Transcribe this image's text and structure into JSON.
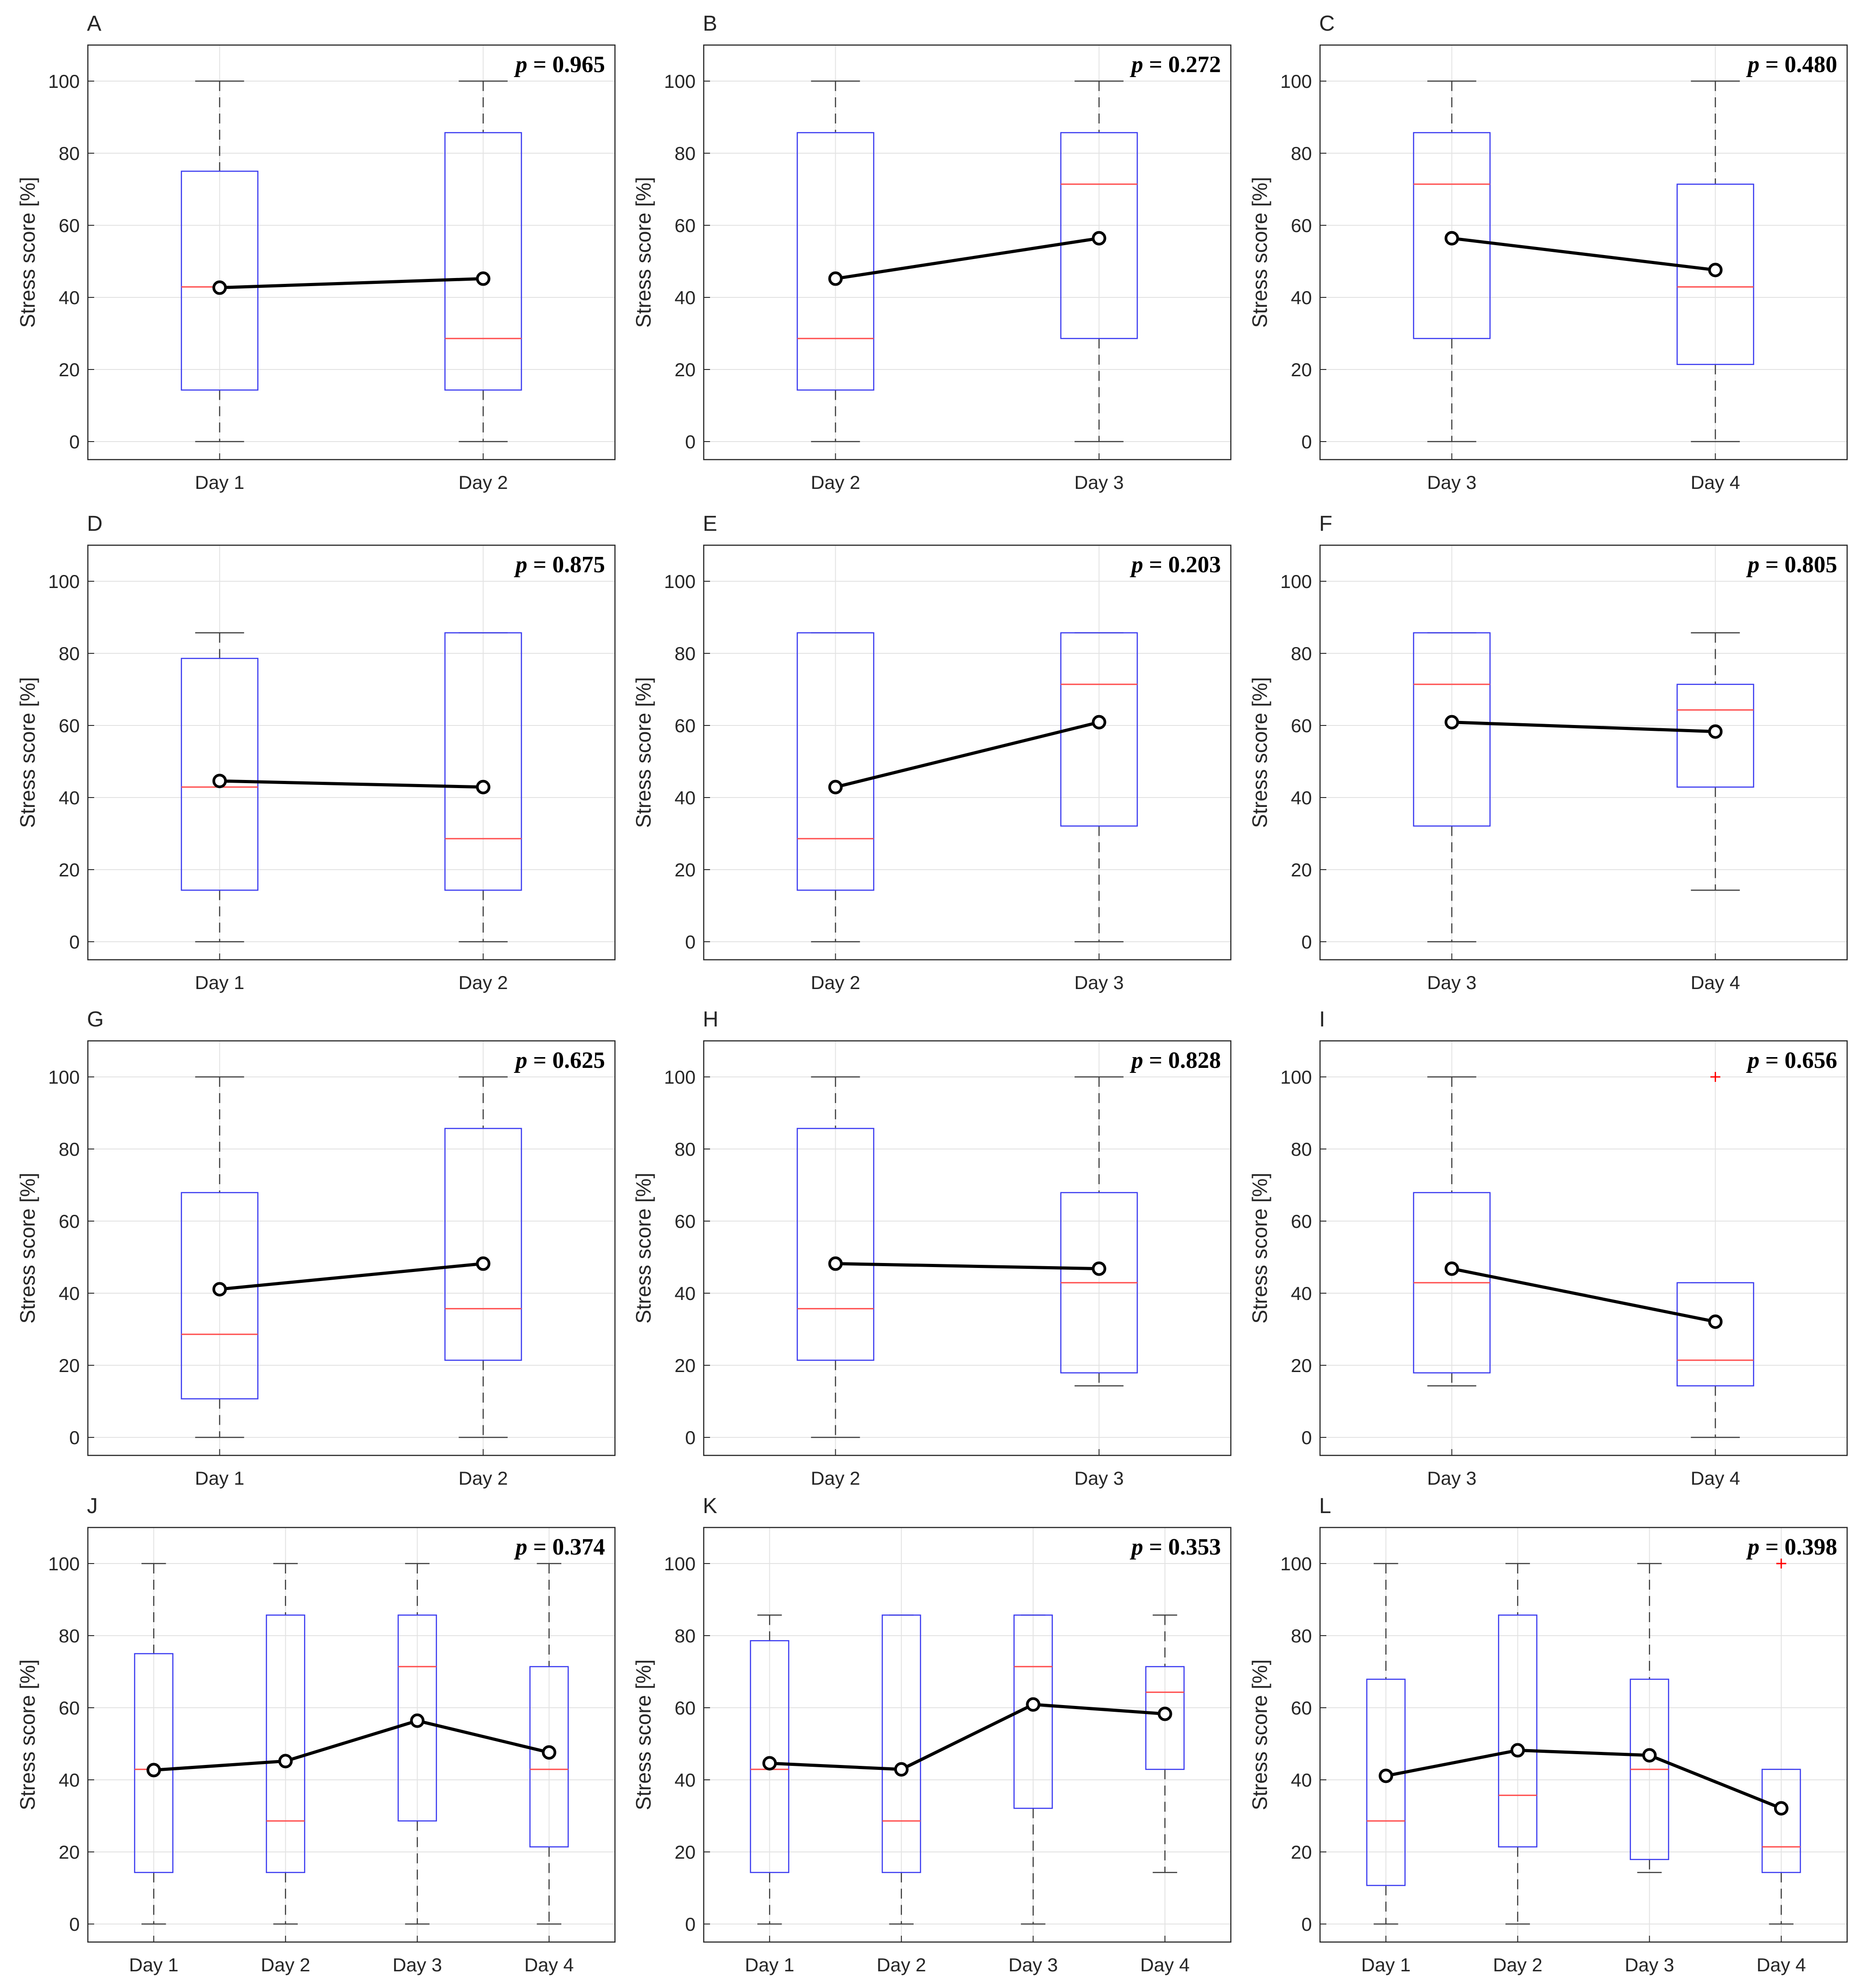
{
  "colors": {
    "box": "#3a3af0",
    "median": "#ff5050",
    "whisker": "#3c3c3c",
    "mean_line": "#000000",
    "outlier": "#ff0000",
    "grid": "#e3e3e3",
    "axes": "#262626"
  },
  "chart_data": [
    {
      "type": "box",
      "panel": "A",
      "p_symbol": "p",
      "p_value": "= 0.965",
      "ylabel": "Stress score [%]",
      "ylim": [
        -5,
        110
      ],
      "yticks": [
        "0",
        "20",
        "40",
        "60",
        "80",
        "100"
      ],
      "categories": [
        "Day 1",
        "Day 2"
      ],
      "boxes": [
        {
          "min": 0,
          "q1": 14.3,
          "median": 42.9,
          "q3": 75,
          "max": 100
        },
        {
          "min": 0,
          "q1": 14.3,
          "median": 28.6,
          "q3": 85.7,
          "max": 100
        }
      ],
      "means": [
        42.7,
        45.2
      ],
      "outliers": [
        [],
        []
      ]
    },
    {
      "type": "box",
      "panel": "B",
      "p_symbol": "p",
      "p_value": "= 0.272",
      "ylabel": "Stress score [%]",
      "ylim": [
        -5,
        110
      ],
      "yticks": [
        "0",
        "20",
        "40",
        "60",
        "80",
        "100"
      ],
      "categories": [
        "Day 2",
        "Day 3"
      ],
      "boxes": [
        {
          "min": 0,
          "q1": 14.3,
          "median": 28.6,
          "q3": 85.7,
          "max": 100
        },
        {
          "min": 0,
          "q1": 28.6,
          "median": 71.4,
          "q3": 85.7,
          "max": 100
        }
      ],
      "means": [
        45.2,
        56.4
      ],
      "outliers": [
        [],
        []
      ]
    },
    {
      "type": "box",
      "panel": "C",
      "p_symbol": "p",
      "p_value": "= 0.480",
      "ylabel": "Stress score [%]",
      "ylim": [
        -5,
        110
      ],
      "yticks": [
        "0",
        "20",
        "40",
        "60",
        "80",
        "100"
      ],
      "categories": [
        "Day 3",
        "Day 4"
      ],
      "boxes": [
        {
          "min": 0,
          "q1": 28.6,
          "median": 71.4,
          "q3": 85.7,
          "max": 100
        },
        {
          "min": 0,
          "q1": 21.4,
          "median": 42.9,
          "q3": 71.4,
          "max": 100
        }
      ],
      "means": [
        56.4,
        47.6
      ],
      "outliers": [
        [],
        []
      ]
    },
    {
      "type": "box",
      "panel": "D",
      "p_symbol": "p",
      "p_value": "= 0.875",
      "ylabel": "Stress score [%]",
      "ylim": [
        -5,
        110
      ],
      "yticks": [
        "0",
        "20",
        "40",
        "60",
        "80",
        "100"
      ],
      "categories": [
        "Day 1",
        "Day 2"
      ],
      "boxes": [
        {
          "min": 0,
          "q1": 14.3,
          "median": 42.9,
          "q3": 78.6,
          "max": 85.7
        },
        {
          "min": 0,
          "q1": 14.3,
          "median": 28.6,
          "q3": 85.7,
          "max": 85.7
        }
      ],
      "means": [
        44.6,
        42.9
      ],
      "outliers": [
        [],
        []
      ]
    },
    {
      "type": "box",
      "panel": "E",
      "p_symbol": "p",
      "p_value": "= 0.203",
      "ylabel": "Stress score [%]",
      "ylim": [
        -5,
        110
      ],
      "yticks": [
        "0",
        "20",
        "40",
        "60",
        "80",
        "100"
      ],
      "categories": [
        "Day 2",
        "Day 3"
      ],
      "boxes": [
        {
          "min": 0,
          "q1": 14.3,
          "median": 28.6,
          "q3": 85.7,
          "max": 85.7
        },
        {
          "min": 0,
          "q1": 32.1,
          "median": 71.4,
          "q3": 85.7,
          "max": 85.7
        }
      ],
      "means": [
        42.9,
        60.9
      ],
      "outliers": [
        [],
        []
      ]
    },
    {
      "type": "box",
      "panel": "F",
      "p_symbol": "p",
      "p_value": "= 0.805",
      "ylabel": "Stress score [%]",
      "ylim": [
        -5,
        110
      ],
      "yticks": [
        "0",
        "20",
        "40",
        "60",
        "80",
        "100"
      ],
      "categories": [
        "Day 3",
        "Day 4"
      ],
      "boxes": [
        {
          "min": 0,
          "q1": 32.1,
          "median": 71.4,
          "q3": 85.7,
          "max": 85.7
        },
        {
          "min": 14.3,
          "q1": 42.9,
          "median": 64.3,
          "q3": 71.4,
          "max": 85.7
        }
      ],
      "means": [
        60.9,
        58.3
      ],
      "outliers": [
        [],
        []
      ]
    },
    {
      "type": "box",
      "panel": "G",
      "p_symbol": "p",
      "p_value": "= 0.625",
      "ylabel": "Stress score [%]",
      "ylim": [
        -5,
        110
      ],
      "yticks": [
        "0",
        "20",
        "40",
        "60",
        "80",
        "100"
      ],
      "categories": [
        "Day 1",
        "Day 2"
      ],
      "boxes": [
        {
          "min": 0,
          "q1": 10.7,
          "median": 28.6,
          "q3": 67.9,
          "max": 100
        },
        {
          "min": 0,
          "q1": 21.4,
          "median": 35.7,
          "q3": 85.7,
          "max": 100
        }
      ],
      "means": [
        41.1,
        48.2
      ],
      "outliers": [
        [],
        []
      ]
    },
    {
      "type": "box",
      "panel": "H",
      "p_symbol": "p",
      "p_value": "= 0.828",
      "ylabel": "Stress score [%]",
      "ylim": [
        -5,
        110
      ],
      "yticks": [
        "0",
        "20",
        "40",
        "60",
        "80",
        "100"
      ],
      "categories": [
        "Day 2",
        "Day 3"
      ],
      "boxes": [
        {
          "min": 0,
          "q1": 21.4,
          "median": 35.7,
          "q3": 85.7,
          "max": 100
        },
        {
          "min": 14.3,
          "q1": 17.9,
          "median": 42.9,
          "q3": 67.9,
          "max": 100
        }
      ],
      "means": [
        48.2,
        46.8
      ],
      "outliers": [
        [],
        []
      ]
    },
    {
      "type": "box",
      "panel": "I",
      "p_symbol": "p",
      "p_value": "= 0.656",
      "ylabel": "Stress score [%]",
      "ylim": [
        -5,
        110
      ],
      "yticks": [
        "0",
        "20",
        "40",
        "60",
        "80",
        "100"
      ],
      "categories": [
        "Day 3",
        "Day 4"
      ],
      "boxes": [
        {
          "min": 14.3,
          "q1": 17.9,
          "median": 42.9,
          "q3": 67.9,
          "max": 100
        },
        {
          "min": 0,
          "q1": 14.3,
          "median": 21.4,
          "q3": 42.9,
          "max": 42.9
        }
      ],
      "means": [
        46.8,
        32.1
      ],
      "outliers": [
        [],
        [
          100
        ]
      ]
    },
    {
      "type": "box",
      "panel": "J",
      "p_symbol": "p",
      "p_value": "= 0.374",
      "ylabel": "Stress score [%]",
      "ylim": [
        -5,
        110
      ],
      "yticks": [
        "0",
        "20",
        "40",
        "60",
        "80",
        "100"
      ],
      "categories": [
        "Day 1",
        "Day 2",
        "Day 3",
        "Day 4"
      ],
      "boxes": [
        {
          "min": 0,
          "q1": 14.3,
          "median": 42.9,
          "q3": 75,
          "max": 100
        },
        {
          "min": 0,
          "q1": 14.3,
          "median": 28.6,
          "q3": 85.7,
          "max": 100
        },
        {
          "min": 0,
          "q1": 28.6,
          "median": 71.4,
          "q3": 85.7,
          "max": 100
        },
        {
          "min": 0,
          "q1": 21.4,
          "median": 42.9,
          "q3": 71.4,
          "max": 100
        }
      ],
      "means": [
        42.7,
        45.2,
        56.4,
        47.6
      ],
      "outliers": [
        [],
        [],
        [],
        []
      ]
    },
    {
      "type": "box",
      "panel": "K",
      "p_symbol": "p",
      "p_value": "= 0.353",
      "ylabel": "Stress score [%]",
      "ylim": [
        -5,
        110
      ],
      "yticks": [
        "0",
        "20",
        "40",
        "60",
        "80",
        "100"
      ],
      "categories": [
        "Day 1",
        "Day 2",
        "Day 3",
        "Day 4"
      ],
      "boxes": [
        {
          "min": 0,
          "q1": 14.3,
          "median": 42.9,
          "q3": 78.6,
          "max": 85.7
        },
        {
          "min": 0,
          "q1": 14.3,
          "median": 28.6,
          "q3": 85.7,
          "max": 85.7
        },
        {
          "min": 0,
          "q1": 32.1,
          "median": 71.4,
          "q3": 85.7,
          "max": 85.7
        },
        {
          "min": 14.3,
          "q1": 42.9,
          "median": 64.3,
          "q3": 71.4,
          "max": 85.7
        }
      ],
      "means": [
        44.6,
        42.9,
        60.9,
        58.3
      ],
      "outliers": [
        [],
        [],
        [],
        []
      ]
    },
    {
      "type": "box",
      "panel": "L",
      "p_symbol": "p",
      "p_value": "= 0.398",
      "ylabel": "Stress score [%]",
      "ylim": [
        -5,
        110
      ],
      "yticks": [
        "0",
        "20",
        "40",
        "60",
        "80",
        "100"
      ],
      "categories": [
        "Day 1",
        "Day 2",
        "Day 3",
        "Day 4"
      ],
      "boxes": [
        {
          "min": 0,
          "q1": 10.7,
          "median": 28.6,
          "q3": 67.9,
          "max": 100
        },
        {
          "min": 0,
          "q1": 21.4,
          "median": 35.7,
          "q3": 85.7,
          "max": 100
        },
        {
          "min": 14.3,
          "q1": 17.9,
          "median": 42.9,
          "q3": 67.9,
          "max": 100
        },
        {
          "min": 0,
          "q1": 14.3,
          "median": 21.4,
          "q3": 42.9,
          "max": 42.9
        }
      ],
      "means": [
        41.1,
        48.2,
        46.8,
        32.1
      ],
      "outliers": [
        [],
        [],
        [],
        [
          100
        ]
      ]
    }
  ]
}
